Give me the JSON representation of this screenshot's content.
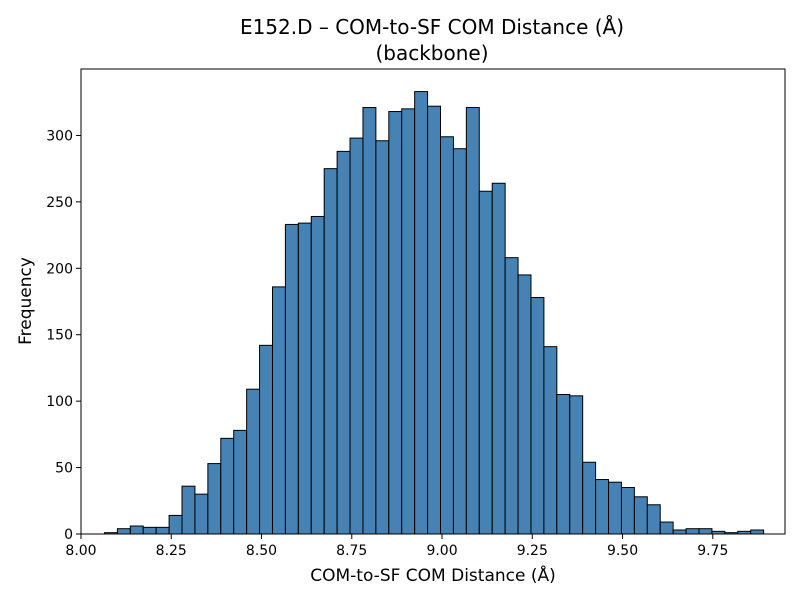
{
  "chart_data": {
    "type": "histogram",
    "title": "E152.D – COM-to-SF COM Distance (Å)",
    "subtitle": "(backbone)",
    "xlabel": "COM-to-SF COM Distance (Å)",
    "ylabel": "Frequency",
    "xlim": [
      8.0,
      9.95
    ],
    "ylim": [
      0,
      350
    ],
    "xticks": [
      8.0,
      8.25,
      8.5,
      8.75,
      9.0,
      9.25,
      9.5,
      9.75
    ],
    "xtick_labels": [
      "8.00",
      "8.25",
      "8.50",
      "8.75",
      "9.00",
      "9.25",
      "9.50",
      "9.75"
    ],
    "yticks": [
      0,
      50,
      100,
      150,
      200,
      250,
      300
    ],
    "ytick_labels": [
      "0",
      "50",
      "100",
      "150",
      "200",
      "250",
      "300"
    ],
    "bar_color": "#4682b4",
    "edge_color": "#000000",
    "bin_start": 8.065,
    "bin_width": 0.0358,
    "frequencies": [
      1,
      4,
      6,
      5,
      5,
      14,
      36,
      30,
      53,
      72,
      78,
      109,
      142,
      186,
      233,
      234,
      239,
      275,
      288,
      298,
      321,
      296,
      318,
      320,
      333,
      322,
      299,
      290,
      321,
      258,
      264,
      208,
      195,
      178,
      141,
      105,
      104,
      54,
      41,
      39,
      35,
      28,
      22,
      9,
      3,
      4,
      4,
      2,
      1,
      2,
      3
    ]
  }
}
